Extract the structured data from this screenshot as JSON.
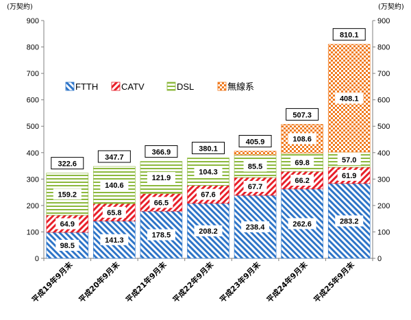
{
  "chart_data": {
    "type": "bar",
    "stacked": true,
    "categories": [
      "平成19年9月末",
      "平成20年9月末",
      "平成21年9月末",
      "平成22年9月末",
      "平成23年9月末",
      "平成24年9月末",
      "平成25年9月末"
    ],
    "series": [
      {
        "name": "FTTH",
        "color": "#2e75c8",
        "pattern": "diagonal-stripes",
        "values": [
          98.5,
          141.3,
          178.5,
          208.2,
          238.4,
          262.6,
          283.2
        ]
      },
      {
        "name": "CATV",
        "color": "#e8202a",
        "pattern": "diagonal-stripes-reverse",
        "values": [
          64.9,
          65.8,
          66.5,
          67.6,
          67.7,
          66.2,
          61.9
        ]
      },
      {
        "name": "DSL",
        "color": "#8cb83c",
        "pattern": "horizontal-stripes",
        "values": [
          159.2,
          140.6,
          121.9,
          104.3,
          85.5,
          69.8,
          57.0
        ]
      },
      {
        "name": "無線系",
        "color": "#f07b20",
        "pattern": "checker",
        "values": [
          null,
          null,
          null,
          null,
          14.3,
          108.6,
          408.1
        ]
      }
    ],
    "segment_labels": [
      [
        "98.5",
        "64.9",
        "159.2",
        ""
      ],
      [
        "141.3",
        "65.8",
        "140.6",
        ""
      ],
      [
        "178.5",
        "66.5",
        "121.9",
        ""
      ],
      [
        "208.2",
        "67.6",
        "104.3",
        ""
      ],
      [
        "238.4",
        "67.7",
        "85.5",
        ""
      ],
      [
        "262.6",
        "66.2",
        "69.8",
        "108.6"
      ],
      [
        "283.2",
        "61.9",
        "57.0",
        "408.1"
      ]
    ],
    "totals": [
      "322.6",
      "347.7",
      "366.9",
      "380.1",
      "405.9",
      "507.3",
      "810.1"
    ],
    "total_values": [
      322.6,
      347.7,
      366.9,
      380.1,
      405.9,
      507.3,
      810.1
    ],
    "ylim": [
      0,
      900
    ],
    "yticks": [
      "0",
      "100",
      "200",
      "300",
      "400",
      "500",
      "600",
      "700",
      "800",
      "900"
    ],
    "left_unit": "(万契約)",
    "right_unit": "(万契約)",
    "legend": [
      "FTTH",
      "CATV",
      "DSL",
      "無線系"
    ],
    "grid": false
  }
}
